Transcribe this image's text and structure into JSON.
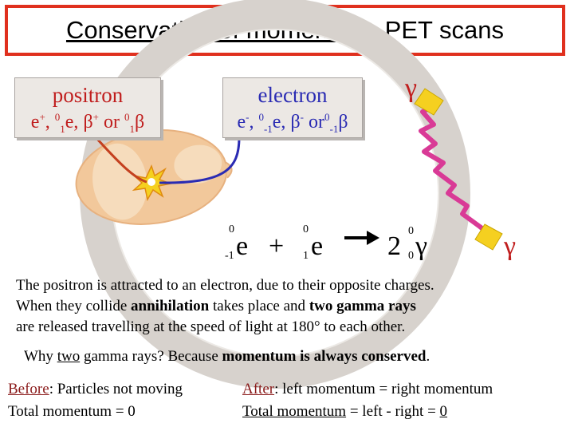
{
  "title": {
    "main": "Conservation of momentum",
    "rest": " - PET scans"
  },
  "positron": {
    "label": "positron",
    "sym_e": "e",
    "sym_plus": "+",
    "sep1": ", ",
    "sup0a": "0",
    "sub1a": "1",
    "sym_e2": "e, ",
    "beta1": "β",
    "plus2": "+",
    "or": " or ",
    "sup0b": "0",
    "sub1b": "1",
    "beta2": "β"
  },
  "electron": {
    "label": "electron",
    "sym_e": "e",
    "minus": "-",
    "sep1": ", ",
    "sup0a": "0",
    "sub1a": "-1",
    "sym_e2": "e, ",
    "beta1": "β",
    "minus2": "-",
    "or": " or",
    "sup0b": "0",
    "sub1b": "-1",
    "beta2": "β"
  },
  "gamma_top": "γ",
  "gamma_right": "γ",
  "equation": {
    "e1_sup": "0",
    "e1_sub": "-1",
    "e1": "e",
    "plus": "+",
    "e2_sup": "0",
    "e2_sub": "1",
    "e2": "e",
    "coef": "2",
    "g_sup": "0",
    "g_sub": "0",
    "g": "γ"
  },
  "body": {
    "line1": "The positron is attracted to an electron, due to their opposite charges.",
    "line2a": "When they collide ",
    "line2b": "annihilation",
    "line2c": " takes place and ",
    "line2d": "two gamma rays",
    "line3": "are released travelling at the speed of light at 180° to each other.",
    "line4a": "Why ",
    "line4b": "two",
    "line4c": " gamma rays? ",
    "line4d": "Because ",
    "line4e": "momentum is always conserved",
    "line4f": "."
  },
  "before": {
    "label": "Before",
    "text": ": Particles not moving",
    "total": "Total momentum = 0"
  },
  "after": {
    "label": "After",
    "text": ": left momentum = right momentum",
    "total_u": "Total momentum",
    "total_rest": " = left - right = ",
    "zero": "0"
  },
  "colors": {
    "title_border": "#e0301e",
    "positron": "#c01d1d",
    "electron": "#2a2bb3",
    "gamma_wave": "#d93a96",
    "flash": "#f5d020"
  }
}
